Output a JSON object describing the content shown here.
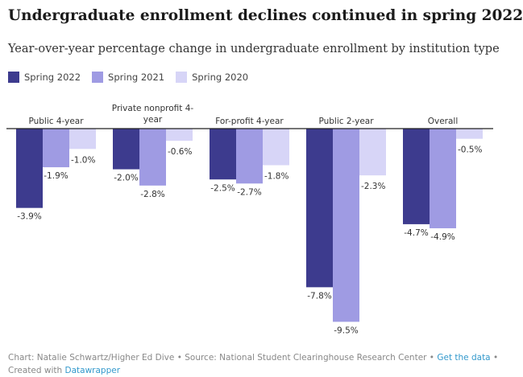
{
  "title": "Undergraduate enrollment declines continued in spring 2022",
  "subtitle": "Year-over-year percentage change in undergraduate enrollment by institution type",
  "footer": {
    "text": "Chart: Natalie Schwartz/Higher Ed Dive • Source: National Student Clearinghouse Research Center • ",
    "get_data": "Get the data",
    "sep": " •",
    "created_with": "Created with ",
    "tool": "Datawrapper"
  },
  "colors": {
    "spring_2022": "#3d3b8e",
    "spring_2021": "#9f9be3",
    "spring_2020": "#d7d5f7"
  },
  "chart_data": {
    "type": "bar",
    "categories": [
      "Public 4-year",
      "Private nonprofit 4-year",
      "For-profit 4-year",
      "Public 2-year",
      "Overall"
    ],
    "category_labels": [
      [
        "Public 4-year"
      ],
      [
        "Private nonprofit 4-",
        "year"
      ],
      [
        "For-profit 4-year"
      ],
      [
        "Public 2-year"
      ],
      [
        "Overall"
      ]
    ],
    "series": [
      {
        "name": "Spring 2022",
        "values": [
          -3.9,
          -2.0,
          -2.5,
          -7.8,
          -4.7
        ],
        "labels": [
          "-3.9%",
          "-2.0%",
          "-2.5%",
          "-7.8%",
          "-4.7%"
        ],
        "color": "#3d3b8e"
      },
      {
        "name": "Spring 2021",
        "values": [
          -1.9,
          -2.8,
          -2.7,
          -9.5,
          -4.9
        ],
        "labels": [
          "-1.9%",
          "-2.8%",
          "-2.7%",
          "-9.5%",
          "-4.9%"
        ],
        "color": "#9f9be3"
      },
      {
        "name": "Spring 2020",
        "values": [
          -1.0,
          -0.6,
          -1.8,
          -2.3,
          -0.5
        ],
        "labels": [
          "-1.0%",
          "-0.6%",
          "-1.8%",
          "-2.3%",
          "-0.5%"
        ],
        "color": "#d7d5f7"
      }
    ],
    "ylim": [
      -9.5,
      0
    ],
    "legend": "top-left",
    "grid": false
  }
}
